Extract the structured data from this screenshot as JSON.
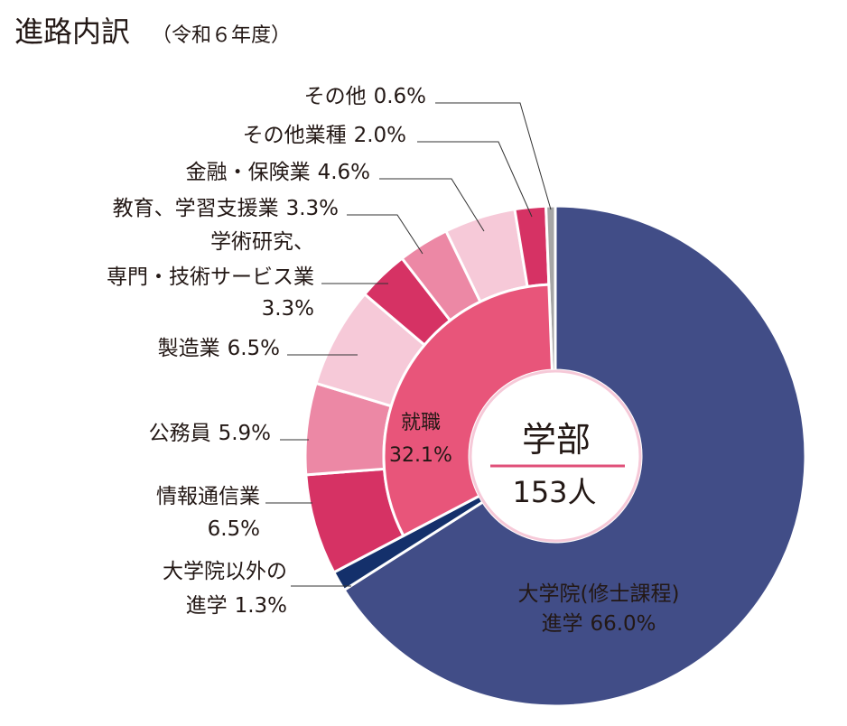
{
  "chart_data": {
    "type": "donut",
    "title": "進路内訳",
    "subtitle": "（令和６年度）",
    "center_text": [
      "学部",
      "153人"
    ],
    "categories": [
      [
        "大学院(修士課程)",
        "進学"
      ],
      [
        "大学院以外の",
        "進学"
      ],
      [
        "情報通信業"
      ],
      [
        "公務員"
      ],
      [
        "製造業"
      ],
      [
        "学術研究、",
        "専門・技術サービス業"
      ],
      [
        "教育、学習支援業"
      ],
      [
        "金融・保険業"
      ],
      [
        "その他業種"
      ],
      [
        "その他"
      ]
    ],
    "values": [
      66.0,
      1.3,
      6.5,
      5.9,
      6.5,
      3.3,
      3.3,
      4.6,
      2.0,
      0.6
    ],
    "value_labels": [
      "66.0%",
      "1.3%",
      "6.5%",
      "5.9%",
      "6.5%",
      "3.3%",
      "3.3%",
      "4.6%",
      "2.0%",
      "0.6%"
    ],
    "colors": [
      "#414d87",
      "#14306b",
      "#d63264",
      "#ec88a5",
      "#f6c9d8",
      "#d63264",
      "#ec88a5",
      "#f6c9d8",
      "#d63264",
      "#a6a6a6"
    ],
    "inner": {
      "name": "就職",
      "value": 32.1,
      "value_label": "32.1%",
      "color": "#e8557a"
    }
  }
}
